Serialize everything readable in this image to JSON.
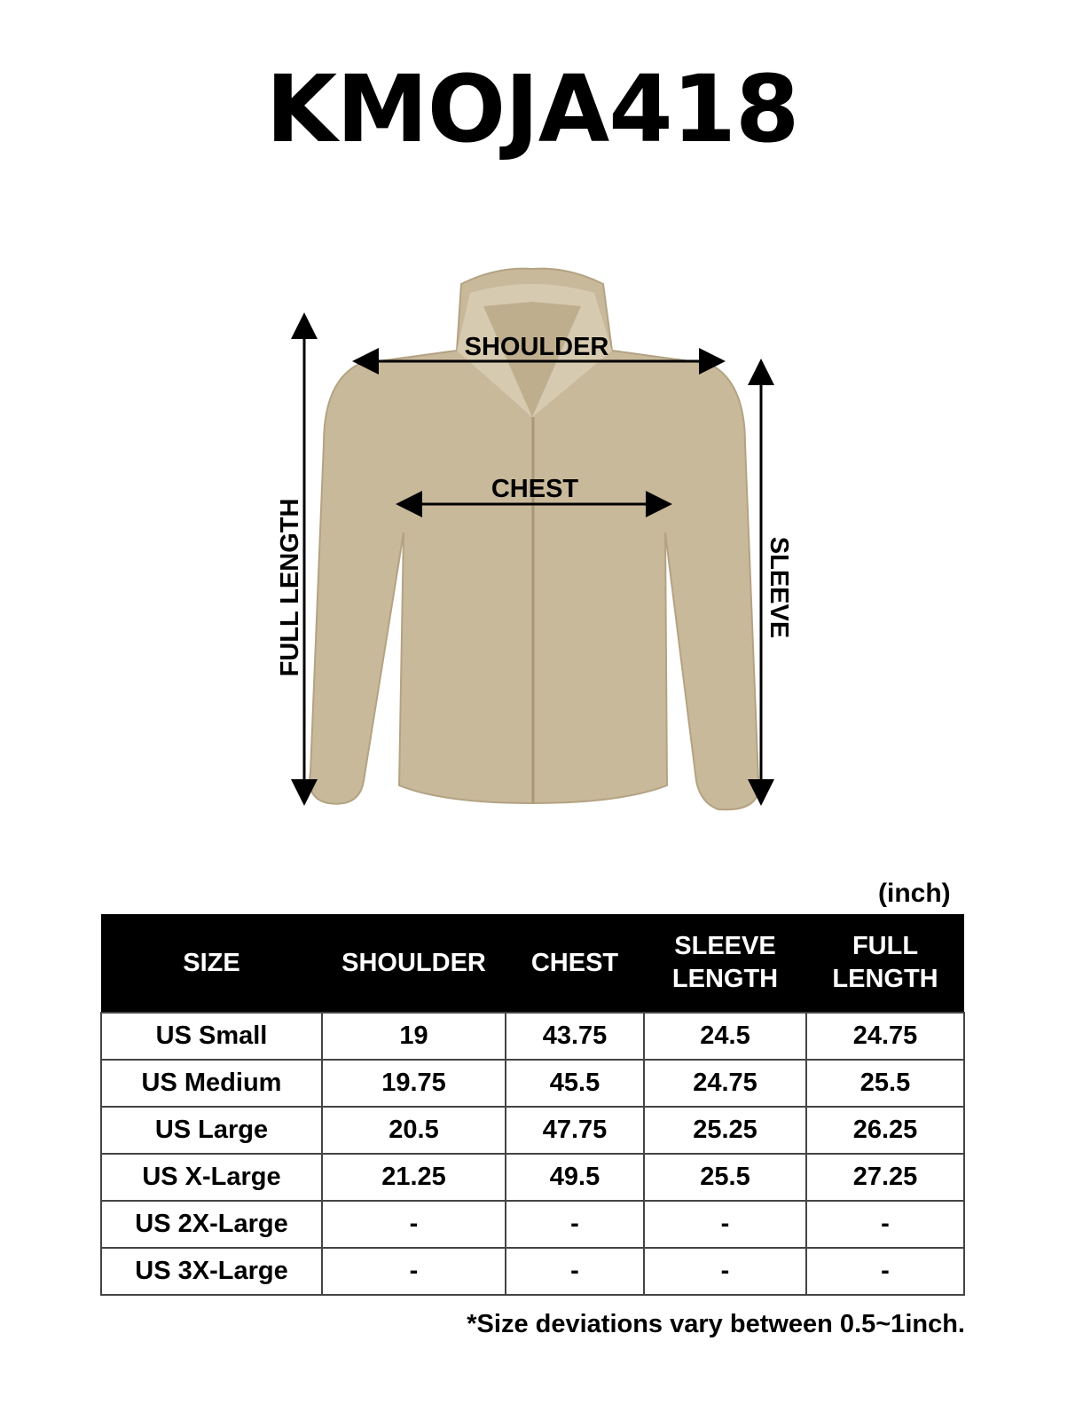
{
  "title": "KMOJA418",
  "diagram": {
    "labels": {
      "shoulder": "SHOULDER",
      "chest": "CHEST",
      "full_length": "FULL LENGTH",
      "sleeve": "SLEEVE"
    },
    "garment_color": "#c9b99b"
  },
  "unit": "(inch)",
  "table": {
    "headers": [
      "SIZE",
      "SHOULDER",
      "CHEST",
      "SLEEVE LENGTH",
      "FULL LENGTH"
    ],
    "rows": [
      [
        "US Small",
        "19",
        "43.75",
        "24.5",
        "24.75"
      ],
      [
        "US Medium",
        "19.75",
        "45.5",
        "24.75",
        "25.5"
      ],
      [
        "US Large",
        "20.5",
        "47.75",
        "25.25",
        "26.25"
      ],
      [
        "US X-Large",
        "21.25",
        "49.5",
        "25.5",
        "27.25"
      ],
      [
        "US 2X-Large",
        "-",
        "-",
        "-",
        "-"
      ],
      [
        "US 3X-Large",
        "-",
        "-",
        "-",
        "-"
      ]
    ]
  },
  "note": "*Size deviations vary between 0.5~1inch."
}
